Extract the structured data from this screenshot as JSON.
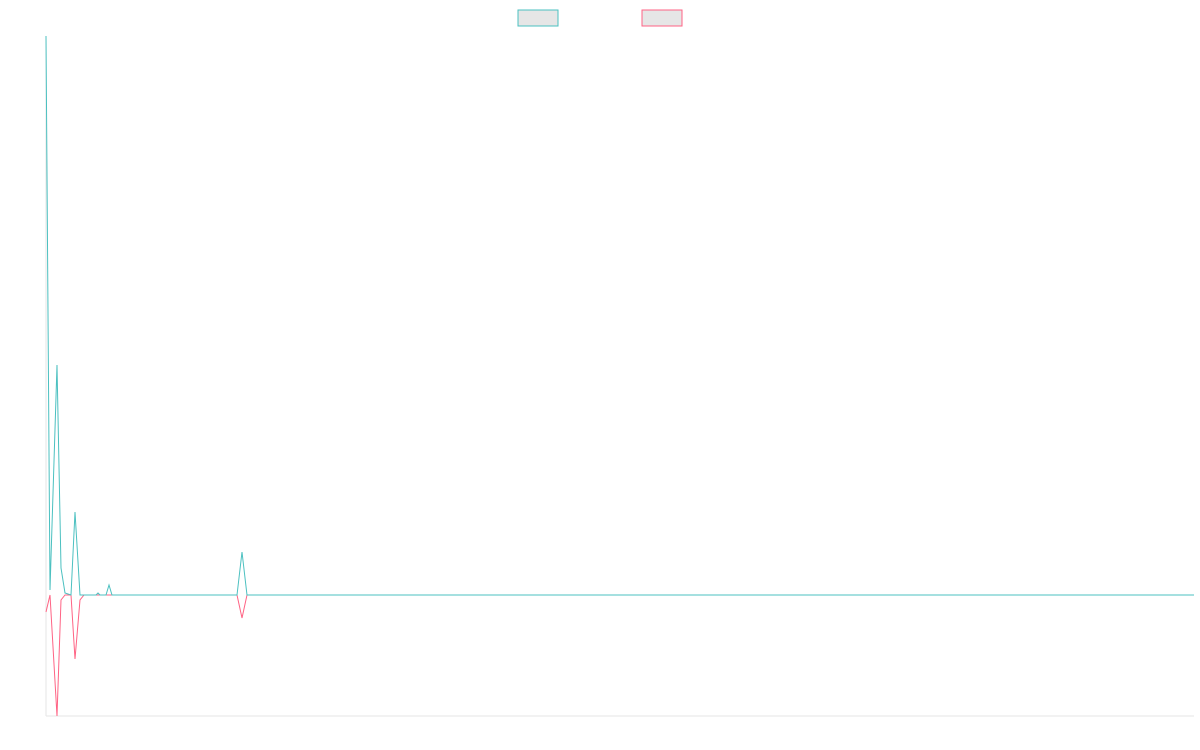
{
  "chart_data": {
    "type": "line",
    "x": [
      0,
      4,
      11,
      15,
      19,
      25,
      29,
      34,
      38,
      50,
      52,
      54,
      60,
      63,
      66,
      191,
      196,
      201,
      1148
    ],
    "xlim": [
      0,
      1148
    ],
    "ylim": [
      -121,
      559
    ],
    "series": [
      {
        "color": "#4bc0c0",
        "values": [
          559,
          5,
          230,
          27,
          2,
          0,
          83,
          0,
          0,
          0,
          2,
          0,
          0,
          10,
          0,
          0,
          43,
          0,
          0
        ]
      },
      {
        "color": "#ff6384",
        "values": [
          -17,
          0,
          -121,
          -5,
          0,
          0,
          -64,
          -5,
          0,
          0,
          0,
          0,
          0,
          0,
          0,
          0,
          -23,
          0,
          0
        ]
      }
    ]
  }
}
